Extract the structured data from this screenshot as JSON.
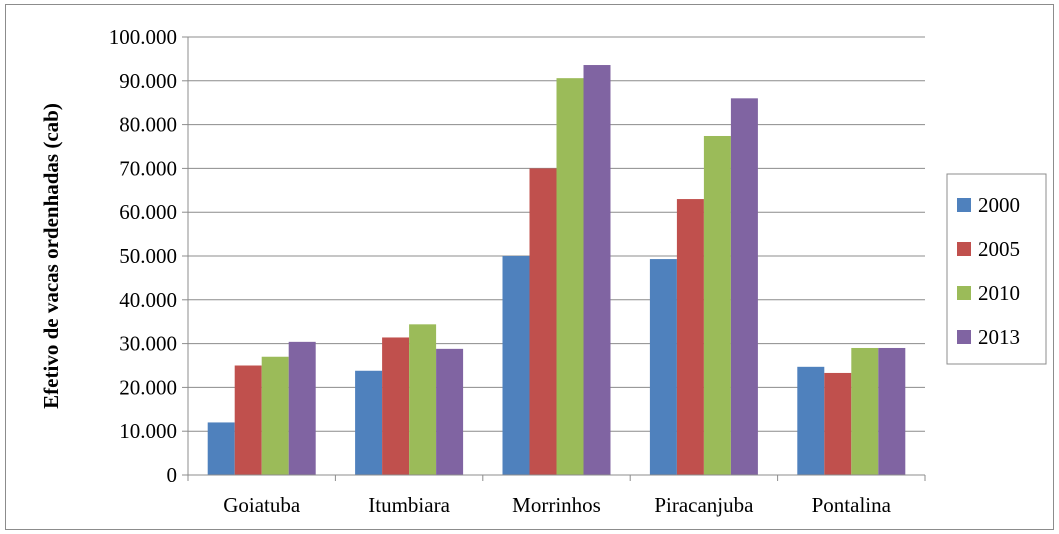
{
  "chart_data": {
    "type": "bar",
    "title": "",
    "xlabel": "",
    "ylabel": "Efetivo de vacas ordenhadas (cab)",
    "ylim": [
      0,
      100000
    ],
    "y_ticks": [
      "0",
      "10.000",
      "20.000",
      "30.000",
      "40.000",
      "50.000",
      "60.000",
      "70.000",
      "80.000",
      "90.000",
      "100.000"
    ],
    "grid": true,
    "legend_position": "right",
    "categories": [
      "Goiatuba",
      "Itumbiara",
      "Morrinhos",
      "Piracanjuba",
      "Pontalina"
    ],
    "series": [
      {
        "name": "2000",
        "color": "#4f81bd",
        "values": [
          12000,
          23800,
          50000,
          49300,
          24700
        ]
      },
      {
        "name": "2005",
        "color": "#c0504d",
        "values": [
          25000,
          31400,
          70000,
          63000,
          23300
        ]
      },
      {
        "name": "2010",
        "color": "#9bbb59",
        "values": [
          27000,
          34400,
          90600,
          77400,
          29000
        ]
      },
      {
        "name": "2013",
        "color": "#8064a2",
        "values": [
          30400,
          28800,
          93600,
          86000,
          29000
        ]
      }
    ]
  }
}
